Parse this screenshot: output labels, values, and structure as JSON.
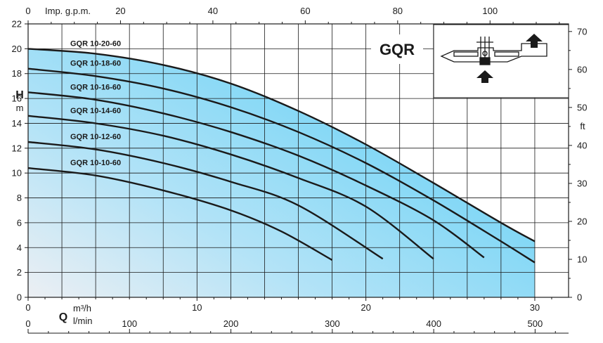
{
  "chart_data": {
    "type": "line",
    "title": "",
    "brand_label": "GQR",
    "x": {
      "bottom_primary": {
        "unit_label": "m³/h",
        "symbol": "Q",
        "range": [
          0,
          32
        ],
        "ticks": [
          0,
          10,
          20,
          30
        ]
      },
      "bottom_secondary": {
        "unit_label": "l/min",
        "range": [
          0,
          533
        ],
        "ticks": [
          0,
          100,
          200,
          300,
          400,
          500
        ]
      },
      "top": {
        "unit_label": "Imp. g.p.m.",
        "range": [
          0,
          117
        ],
        "ticks": [
          0,
          20,
          40,
          60,
          80,
          100
        ]
      }
    },
    "y": {
      "left": {
        "unit_label": "m",
        "symbol": "H",
        "range": [
          0,
          22
        ],
        "ticks": [
          0,
          2,
          4,
          6,
          8,
          10,
          12,
          14,
          16,
          18,
          20,
          22
        ]
      },
      "right": {
        "unit_label": "ft",
        "range": [
          0,
          72
        ],
        "ticks": [
          0,
          10,
          20,
          30,
          40,
          50,
          60,
          70
        ]
      }
    },
    "grid": true,
    "series": [
      {
        "name": "GQR 10-20-60",
        "x": [
          0,
          4,
          8,
          12,
          16,
          20,
          24,
          28,
          30
        ],
        "y": [
          20.0,
          19.6,
          18.7,
          17.2,
          15.0,
          12.3,
          9.2,
          6.0,
          4.5
        ]
      },
      {
        "name": "GQR 10-18-60",
        "x": [
          0,
          4,
          8,
          12,
          16,
          20,
          24,
          28,
          30
        ],
        "y": [
          18.4,
          17.8,
          16.8,
          15.3,
          13.3,
          10.8,
          7.8,
          4.5,
          2.8
        ]
      },
      {
        "name": "GQR 10-16-60",
        "x": [
          0,
          4,
          8,
          12,
          16,
          20,
          24,
          27
        ],
        "y": [
          16.5,
          15.9,
          14.8,
          13.3,
          11.4,
          9.0,
          6.2,
          3.2
        ]
      },
      {
        "name": "GQR 10-14-60",
        "x": [
          0,
          4,
          8,
          12,
          16,
          20,
          24
        ],
        "y": [
          14.6,
          14.0,
          13.0,
          11.5,
          9.6,
          7.3,
          3.1
        ]
      },
      {
        "name": "GQR 10-12-60",
        "x": [
          0,
          4,
          8,
          12,
          16,
          21
        ],
        "y": [
          12.5,
          11.9,
          10.8,
          9.3,
          7.4,
          3.1
        ]
      },
      {
        "name": "GQR 10-10-60",
        "x": [
          0,
          4,
          8,
          12,
          15,
          18
        ],
        "y": [
          10.4,
          9.8,
          8.6,
          7.0,
          5.3,
          3.0
        ]
      }
    ],
    "colors": {
      "fill_light": "#e6ecf2",
      "fill_dark": "#5fcff5",
      "curve": "#1a1a1a"
    }
  }
}
